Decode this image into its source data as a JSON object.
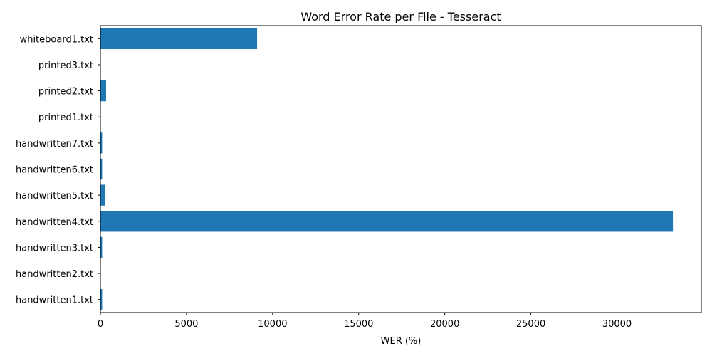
{
  "chart_data": {
    "type": "bar",
    "orientation": "horizontal",
    "title": "Word Error Rate per File - Tesseract",
    "xlabel": "WER (%)",
    "ylabel": "",
    "categories": [
      "handwritten1.txt",
      "handwritten2.txt",
      "handwritten3.txt",
      "handwritten4.txt",
      "handwritten5.txt",
      "handwritten6.txt",
      "handwritten7.txt",
      "printed1.txt",
      "printed2.txt",
      "printed3.txt",
      "whiteboard1.txt"
    ],
    "values": [
      100,
      0,
      100,
      33250,
      250,
      100,
      100,
      0,
      330,
      0,
      9100
    ],
    "xlim": [
      0,
      34900
    ],
    "xticks": [
      0,
      5000,
      10000,
      15000,
      20000,
      25000,
      30000
    ],
    "xtick_labels": [
      "0",
      "5000",
      "10000",
      "15000",
      "20000",
      "25000",
      "30000"
    ],
    "grid": false,
    "bar_color": "#1f77b4"
  }
}
